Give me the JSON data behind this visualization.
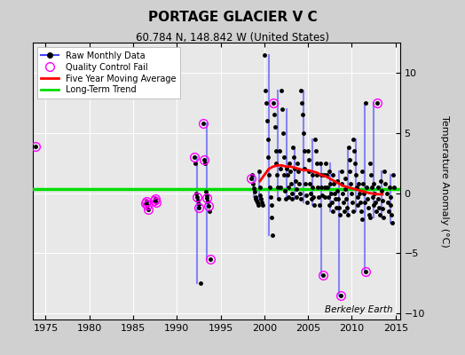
{
  "title": "PORTAGE GLACIER V C",
  "subtitle": "60.784 N, 148.842 W (United States)",
  "ylabel": "Temperature Anomaly (°C)",
  "watermark": "Berkeley Earth",
  "xlim": [
    1973.5,
    2015.5
  ],
  "ylim": [
    -10.5,
    12.5
  ],
  "yticks": [
    -10,
    -5,
    0,
    5,
    10
  ],
  "xticks": [
    1975,
    1980,
    1985,
    1990,
    1995,
    2000,
    2005,
    2010,
    2015
  ],
  "bg_color": "#d0d0d0",
  "plot_bg_color": "#e8e8e8",
  "green_trend_y": 0.3,
  "green_trend_color": "#00dd00",
  "raw_line_color": "#4444ff",
  "raw_fill_color": "#aaaaff",
  "raw_marker_color": "#000000",
  "qc_fail_color": "#ff00ff",
  "moving_avg_color": "#ff0000",
  "year_data": {
    "1973": {
      "months": [
        11
      ],
      "values": [
        3.9
      ],
      "qc": [
        true
      ]
    },
    "1986": {
      "months": [
        6,
        7,
        8,
        9
      ],
      "values": [
        -0.85,
        -0.7,
        -1.0,
        -1.35
      ],
      "qc": [
        true,
        true,
        true,
        true
      ]
    },
    "1987": {
      "months": [
        6,
        7,
        8
      ],
      "values": [
        -0.6,
        -0.5,
        -0.8
      ],
      "qc": [
        true,
        true,
        true
      ]
    },
    "1992": {
      "months": [
        1,
        2,
        3,
        4,
        5,
        6,
        7,
        9
      ],
      "values": [
        3.0,
        2.5,
        0.0,
        -0.3,
        -0.6,
        -0.9,
        -1.2,
        -7.5
      ],
      "qc": [
        true,
        false,
        false,
        true,
        false,
        false,
        true,
        false
      ]
    },
    "1993": {
      "months": [
        1,
        2,
        3,
        4,
        5,
        6,
        7,
        8,
        9,
        10
      ],
      "values": [
        5.8,
        2.8,
        2.5,
        0.1,
        -0.2,
        -0.4,
        -0.7,
        -1.1,
        -1.5,
        -5.5
      ],
      "qc": [
        true,
        true,
        false,
        false,
        false,
        true,
        false,
        true,
        false,
        true
      ]
    },
    "1998": {
      "months": [
        7,
        8,
        9,
        10,
        11,
        12
      ],
      "values": [
        1.2,
        1.5,
        0.8,
        0.4,
        0.1,
        -0.3
      ],
      "qc": [
        true,
        false,
        false,
        false,
        false,
        false
      ]
    },
    "1999": {
      "months": [
        1,
        2,
        3,
        4,
        5,
        6,
        7,
        8,
        9,
        10
      ],
      "values": [
        -0.5,
        -0.6,
        -0.8,
        -1.0,
        1.8,
        0.5,
        -0.2,
        -0.5,
        -0.8,
        -1.0
      ],
      "qc": [
        false,
        false,
        false,
        false,
        false,
        false,
        false,
        false,
        false,
        false
      ]
    },
    "2000": {
      "months": [
        1,
        2,
        3,
        4,
        5,
        6,
        7,
        8,
        9,
        10,
        11,
        12
      ],
      "values": [
        11.5,
        8.5,
        7.5,
        6.0,
        4.5,
        3.0,
        1.5,
        0.5,
        -0.3,
        -1.0,
        -2.0,
        -3.5
      ],
      "qc": [
        false,
        false,
        false,
        false,
        false,
        false,
        false,
        false,
        false,
        false,
        false,
        false
      ]
    },
    "2001": {
      "months": [
        1,
        2,
        3,
        4,
        5,
        6,
        7,
        8,
        9,
        10,
        11,
        12
      ],
      "values": [
        7.5,
        6.5,
        5.5,
        3.5,
        2.5,
        1.5,
        0.5,
        -0.5,
        3.5,
        2.0,
        0.5,
        8.5
      ],
      "qc": [
        true,
        false,
        false,
        false,
        false,
        false,
        false,
        false,
        false,
        false,
        false,
        false
      ]
    },
    "2002": {
      "months": [
        1,
        2,
        3,
        4,
        5,
        6,
        7,
        8,
        9,
        10,
        11,
        12
      ],
      "values": [
        7.0,
        5.0,
        3.0,
        1.5,
        0.2,
        -0.5,
        2.0,
        1.5,
        0.5,
        -0.3,
        2.5,
        1.8
      ],
      "qc": [
        false,
        false,
        false,
        false,
        false,
        false,
        false,
        false,
        false,
        false,
        false,
        false
      ]
    },
    "2003": {
      "months": [
        1,
        2,
        3,
        4,
        5,
        6,
        7,
        8,
        9,
        10,
        11,
        12
      ],
      "values": [
        0.8,
        0.0,
        -0.5,
        3.8,
        3.0,
        2.0,
        1.0,
        0.3,
        -0.3,
        2.5,
        1.8,
        0.8
      ],
      "qc": [
        false,
        false,
        false,
        false,
        false,
        false,
        false,
        false,
        false,
        false,
        false,
        false
      ]
    },
    "2004": {
      "months": [
        1,
        2,
        3,
        4,
        5,
        6,
        7,
        8,
        9,
        10,
        11,
        12
      ],
      "values": [
        0.0,
        -0.5,
        8.5,
        7.5,
        6.5,
        5.0,
        3.5,
        2.0,
        0.8,
        -0.2,
        -0.8,
        3.5
      ],
      "qc": [
        false,
        false,
        false,
        false,
        false,
        false,
        false,
        false,
        false,
        false,
        false,
        false
      ]
    },
    "2005": {
      "months": [
        1,
        2,
        3,
        4,
        5,
        6,
        7,
        8,
        9,
        10,
        11,
        12
      ],
      "values": [
        2.8,
        1.8,
        0.8,
        0.0,
        -0.5,
        1.5,
        0.5,
        -0.3,
        -1.0,
        4.5,
        3.5,
        2.5
      ],
      "qc": [
        false,
        false,
        false,
        false,
        false,
        false,
        false,
        false,
        false,
        false,
        false,
        false
      ]
    },
    "2006": {
      "months": [
        1,
        2,
        3,
        4,
        5,
        6,
        7,
        8,
        9,
        10,
        11,
        12
      ],
      "values": [
        1.5,
        0.5,
        -0.3,
        -1.0,
        2.5,
        1.5,
        0.5,
        -0.2,
        -6.8,
        1.5,
        0.5,
        -0.3
      ],
      "qc": [
        false,
        false,
        false,
        false,
        false,
        false,
        false,
        false,
        true,
        false,
        false,
        false
      ]
    },
    "2007": {
      "months": [
        1,
        2,
        3,
        4,
        5,
        6,
        7,
        8,
        9,
        10,
        11,
        12
      ],
      "values": [
        2.5,
        1.5,
        0.5,
        -0.3,
        -1.0,
        1.8,
        0.8,
        0.0,
        -0.8,
        -1.5,
        1.5,
        0.8
      ],
      "qc": [
        false,
        false,
        false,
        false,
        false,
        false,
        false,
        false,
        false,
        false,
        false,
        false
      ]
    },
    "2008": {
      "months": [
        1,
        2,
        3,
        4,
        5,
        6,
        7,
        8,
        9,
        10,
        11,
        12
      ],
      "values": [
        0.0,
        -0.5,
        -1.2,
        1.0,
        0.2,
        -0.5,
        -1.2,
        -1.8,
        -8.5,
        1.8,
        0.8,
        0.0
      ],
      "qc": [
        false,
        false,
        false,
        false,
        false,
        false,
        false,
        false,
        true,
        false,
        false,
        false
      ]
    },
    "2009": {
      "months": [
        1,
        2,
        3,
        4,
        5,
        6,
        7,
        8,
        9,
        10,
        11,
        12
      ],
      "values": [
        -0.8,
        -1.5,
        1.2,
        0.3,
        -0.5,
        -1.2,
        -1.8,
        3.8,
        2.8,
        1.8,
        0.8,
        0.0
      ],
      "qc": [
        false,
        false,
        false,
        false,
        false,
        false,
        false,
        false,
        false,
        false,
        false,
        false
      ]
    },
    "2010": {
      "months": [
        1,
        2,
        3,
        4,
        5,
        6,
        7,
        8,
        9,
        10,
        11,
        12
      ],
      "values": [
        -0.8,
        -1.5,
        4.5,
        3.5,
        2.5,
        1.5,
        0.5,
        -0.3,
        -1.0,
        0.8,
        0.0,
        -0.8
      ],
      "qc": [
        false,
        false,
        false,
        false,
        false,
        false,
        false,
        false,
        false,
        false,
        false,
        false
      ]
    },
    "2011": {
      "months": [
        1,
        2,
        3,
        4,
        5,
        6,
        7,
        8,
        9,
        10,
        11,
        12
      ],
      "values": [
        -1.5,
        -2.2,
        1.8,
        0.8,
        0.0,
        -0.8,
        -6.5,
        7.5,
        0.5,
        -0.5,
        -1.2,
        -1.8
      ],
      "qc": [
        false,
        false,
        false,
        false,
        false,
        false,
        true,
        false,
        false,
        false,
        false,
        false
      ]
    },
    "2012": {
      "months": [
        1,
        2,
        3,
        4,
        5,
        6,
        7,
        8,
        9,
        10,
        11,
        12
      ],
      "values": [
        -2.0,
        2.5,
        1.5,
        0.5,
        -0.3,
        -1.0,
        0.8,
        0.0,
        -0.8,
        -1.5,
        7.5,
        0.5
      ],
      "qc": [
        false,
        false,
        false,
        false,
        false,
        false,
        false,
        false,
        false,
        false,
        true,
        false
      ]
    },
    "2013": {
      "months": [
        1,
        2,
        3,
        4,
        5,
        6,
        7,
        8,
        9,
        10
      ],
      "values": [
        -0.5,
        -1.2,
        -1.8,
        1.0,
        0.2,
        -0.6,
        -1.3,
        -2.0,
        1.8,
        0.8
      ],
      "qc": [
        false,
        false,
        false,
        false,
        false,
        false,
        false,
        false,
        false,
        false
      ]
    },
    "2014": {
      "months": [
        1,
        2,
        3,
        4,
        5,
        6,
        7,
        8,
        9,
        10
      ],
      "values": [
        0.0,
        -0.8,
        -1.5,
        0.5,
        -0.3,
        -1.0,
        -1.8,
        -2.5,
        1.5,
        0.5
      ],
      "qc": [
        false,
        false,
        false,
        false,
        false,
        false,
        false,
        false,
        false,
        false
      ]
    }
  },
  "moving_avg_x": [
    1999.5,
    2000.0,
    2000.5,
    2001.0,
    2001.5,
    2002.0,
    2002.5,
    2003.0,
    2003.5,
    2004.0,
    2004.5,
    2005.0,
    2005.5,
    2006.0,
    2006.5,
    2007.0,
    2007.5,
    2008.0,
    2008.5,
    2009.0,
    2009.5,
    2010.0,
    2010.5,
    2011.0,
    2011.5,
    2012.0,
    2012.5,
    2013.0,
    2013.5
  ],
  "moving_avg_y": [
    1.0,
    1.5,
    2.0,
    2.2,
    2.3,
    2.3,
    2.2,
    2.2,
    2.1,
    2.0,
    1.9,
    1.9,
    1.8,
    1.7,
    1.5,
    1.4,
    1.2,
    1.0,
    0.8,
    0.6,
    0.5,
    0.4,
    0.3,
    0.2,
    0.1,
    0.0,
    -0.05,
    -0.1,
    -0.1
  ]
}
